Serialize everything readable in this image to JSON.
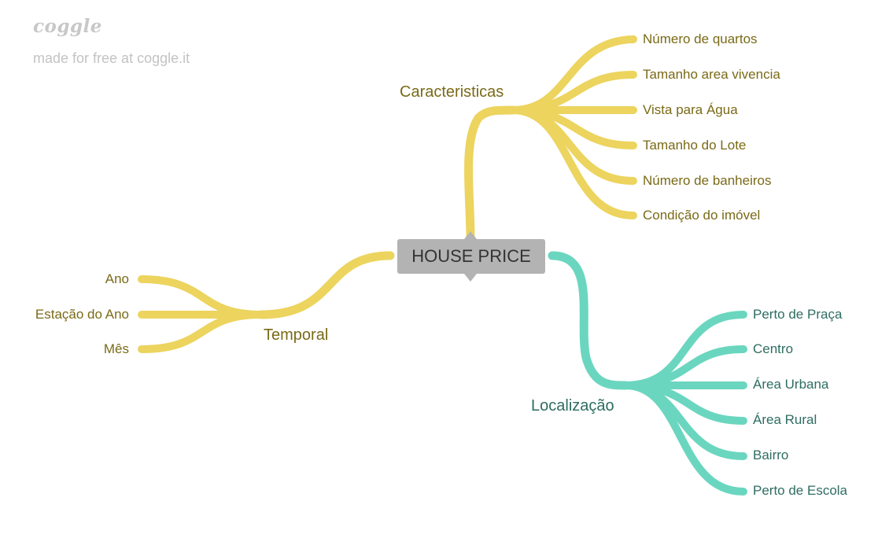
{
  "branding": {
    "logo_text": "coggle",
    "tagline": "made for free at coggle.it"
  },
  "colors": {
    "yellow_branch": "#ecd45e",
    "teal_branch": "#6bd6bf",
    "root_fill": "#b3b3b3"
  },
  "root": {
    "label": "HOUSE PRICE"
  },
  "branches": {
    "caracteristicas": {
      "label": "Caracteristicas",
      "children": [
        "Número de quartos",
        "Tamanho area vivencia",
        "Vista para Água",
        "Tamanho do Lote",
        "Número de banheiros",
        "Condição do imóvel"
      ]
    },
    "temporal": {
      "label": "Temporal",
      "children": [
        "Ano",
        "Estação do Ano",
        "Mês"
      ]
    },
    "localizacao": {
      "label": "Localização",
      "children": [
        "Perto de Praça",
        "Centro",
        "Área Urbana",
        "Área Rural",
        "Bairro",
        "Perto de Escola"
      ]
    }
  }
}
